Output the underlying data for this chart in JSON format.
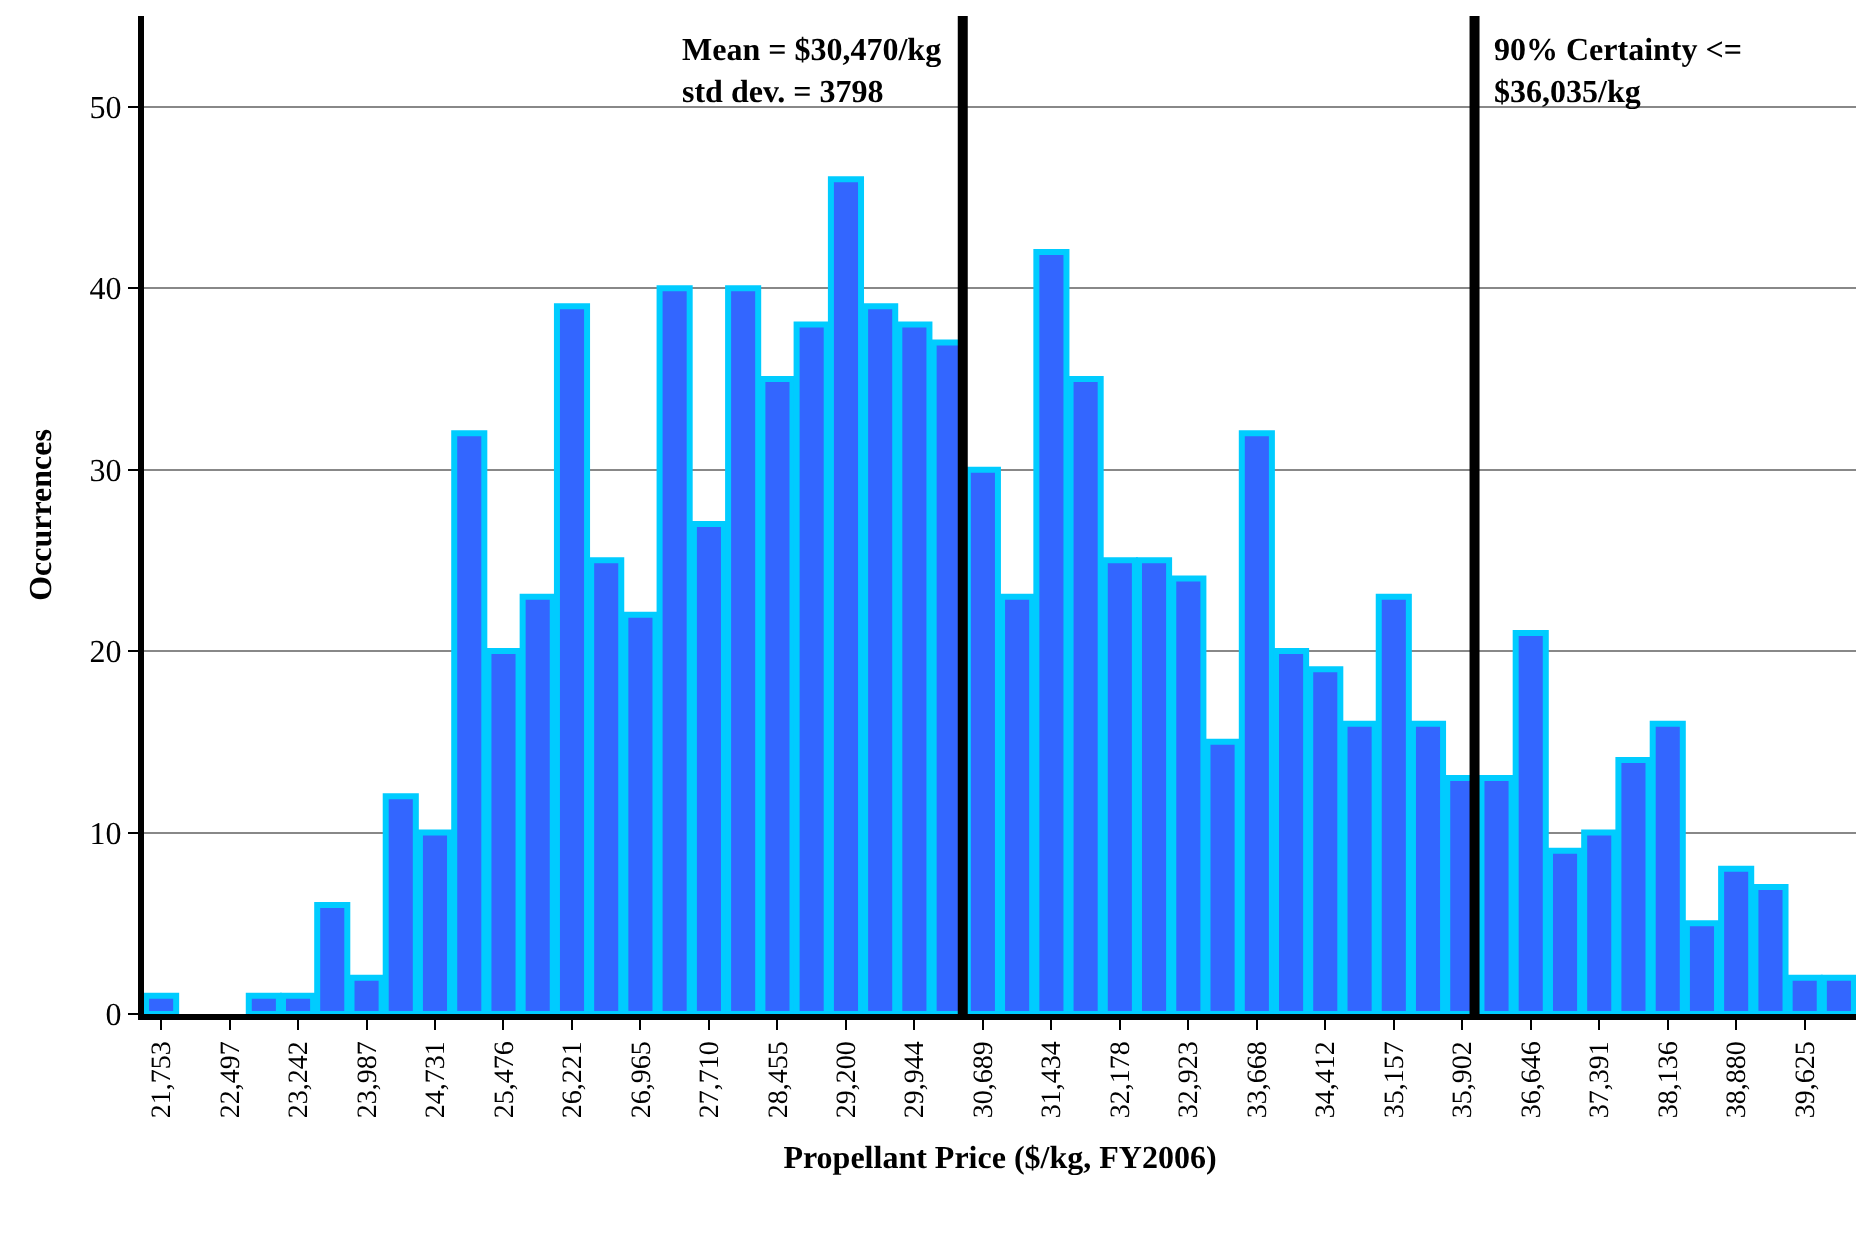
{
  "chart_data": {
    "type": "bar",
    "xlabel": "Propellant Price ($/kg, FY2006)",
    "ylabel": "Occurrences",
    "x": [
      21753,
      22125,
      22497,
      22870,
      23242,
      23614,
      23987,
      24359,
      24731,
      25104,
      25476,
      25848,
      26221,
      26593,
      26965,
      27337,
      27710,
      28082,
      28455,
      28827,
      29200,
      29572,
      29944,
      30317,
      30689,
      31061,
      31434,
      31806,
      32178,
      32550,
      32923,
      33295,
      33668,
      34040,
      34412,
      34785,
      35157,
      35529,
      35902,
      36274,
      36646,
      37019,
      37391,
      37763,
      38136,
      38508,
      38880,
      39253,
      39625,
      39997
    ],
    "values": [
      1,
      0,
      0,
      1,
      1,
      6,
      2,
      12,
      10,
      32,
      20,
      23,
      39,
      25,
      22,
      40,
      27,
      40,
      35,
      38,
      46,
      39,
      38,
      37,
      30,
      23,
      42,
      35,
      25,
      25,
      24,
      15,
      32,
      20,
      19,
      16,
      23,
      16,
      13,
      13,
      21,
      9,
      10,
      14,
      16,
      5,
      8,
      7,
      2,
      2
    ],
    "color": "#3366ff",
    "xlim": [
      21567,
      40183
    ],
    "xticks": [
      {
        "value": 21753,
        "label": "21,753"
      },
      {
        "value": 22497,
        "label": "22,497"
      },
      {
        "value": 23242,
        "label": "23,242"
      },
      {
        "value": 23987,
        "label": "23,987"
      },
      {
        "value": 24731,
        "label": "24,731"
      },
      {
        "value": 25476,
        "label": "25,476"
      },
      {
        "value": 26221,
        "label": "26,221"
      },
      {
        "value": 26965,
        "label": "26,965"
      },
      {
        "value": 27710,
        "label": "27,710"
      },
      {
        "value": 28455,
        "label": "28,455"
      },
      {
        "value": 29200,
        "label": "29,200"
      },
      {
        "value": 29944,
        "label": "29,944"
      },
      {
        "value": 30689,
        "label": "30,689"
      },
      {
        "value": 31434,
        "label": "31,434"
      },
      {
        "value": 32178,
        "label": "32,178"
      },
      {
        "value": 32923,
        "label": "32,923"
      },
      {
        "value": 33668,
        "label": "33,668"
      },
      {
        "value": 34412,
        "label": "34,412"
      },
      {
        "value": 35157,
        "label": "35,157"
      },
      {
        "value": 35902,
        "label": "35,902"
      },
      {
        "value": 36646,
        "label": "36,646"
      },
      {
        "value": 37391,
        "label": "37,391"
      },
      {
        "value": 38136,
        "label": "38,136"
      },
      {
        "value": 38880,
        "label": "38,880"
      },
      {
        "value": 39625,
        "label": "39,625"
      }
    ],
    "ylim": [
      0,
      55
    ],
    "yticks": [
      0,
      10,
      20,
      30,
      40,
      50
    ],
    "grid": "y",
    "ref_lines": [
      {
        "axis": "x",
        "value": 30470,
        "label": "Mean = $30,470/kg\nstd dev. = 3798",
        "color": "#000000"
      },
      {
        "axis": "x",
        "value": 36035,
        "label": "90% Certainty <=\n$36,035/kg",
        "color": "#000000"
      }
    ]
  }
}
